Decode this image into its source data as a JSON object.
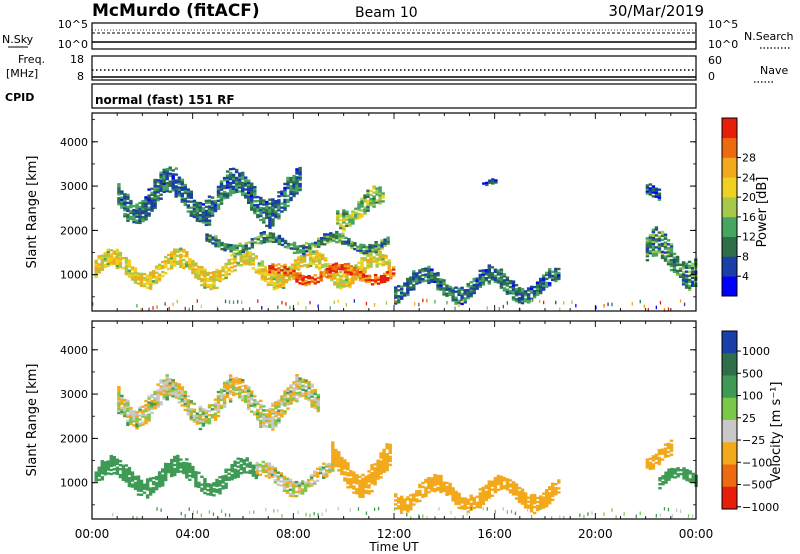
{
  "header": {
    "station": "McMurdo (fitACF)",
    "beam": "Beam 10",
    "date": "30/Mar/2019"
  },
  "status": {
    "nsky_label": "N.Sky",
    "nsky_ticks": [
      "10^5",
      "10^0"
    ],
    "nsearch_label": "N.Search",
    "nsearch_ticks": [
      "10^5",
      "10^0"
    ],
    "freq_label": "Freq.",
    "freq_unit": "[MHz]",
    "freq_ticks": [
      "18",
      "8"
    ],
    "nave_label": "Nave",
    "nave_ticks": [
      "60",
      "0"
    ],
    "cpid_label": "CPID",
    "cpid_value": "normal (fast) 151 RF"
  },
  "chart_data": [
    {
      "type": "heatmap",
      "panel": "power",
      "xlabel": "",
      "ylabel": "Slant Range [km]",
      "x_ticks": [
        "00:00",
        "04:00",
        "08:00",
        "12:00",
        "16:00",
        "20:00",
        "00:00"
      ],
      "y_ticks": [
        "1000",
        "2000",
        "3000",
        "4000"
      ],
      "xlim": [
        0,
        24
      ],
      "ylim": [
        180,
        4650
      ],
      "colorbar": {
        "label": "Power [dB]",
        "ticks": [
          "4",
          "8",
          "12",
          "16",
          "20",
          "24",
          "28"
        ],
        "range": [
          0,
          30
        ],
        "colors": [
          "#0000ff",
          "#1a3fa8",
          "#2e6f4a",
          "#46a560",
          "#a8c84a",
          "#f0d020",
          "#f3a91c",
          "#ee6a10",
          "#e61e0a"
        ]
      },
      "echo_regions": [
        {
          "t0": 0.1,
          "t1": 11.8,
          "r0": 750,
          "r1": 1500,
          "level_db": 18
        },
        {
          "t0": 7.0,
          "t1": 12.0,
          "r0": 800,
          "r1": 1200,
          "level_db": 26
        },
        {
          "t0": 4.5,
          "t1": 11.8,
          "r0": 1500,
          "r1": 1900,
          "level_db": 10
        },
        {
          "t0": 1.0,
          "t1": 8.3,
          "r0": 2200,
          "r1": 3300,
          "level_db": 8
        },
        {
          "t0": 9.7,
          "t1": 11.6,
          "r0": 2100,
          "r1": 2900,
          "level_db": 14
        },
        {
          "t0": 12.0,
          "t1": 18.5,
          "r0": 400,
          "r1": 1100,
          "level_db": 8
        },
        {
          "t0": 15.5,
          "t1": 16.0,
          "r0": 2950,
          "r1": 3150,
          "level_db": 6
        },
        {
          "t0": 22.0,
          "t1": 24.0,
          "r0": 800,
          "r1": 1900,
          "level_db": 10
        },
        {
          "t0": 22.0,
          "t1": 22.6,
          "r0": 2500,
          "r1": 3000,
          "level_db": 6
        }
      ]
    },
    {
      "type": "heatmap",
      "panel": "velocity",
      "xlabel": "Time UT",
      "ylabel": "Slant Range [km]",
      "x_ticks": [
        "00:00",
        "04:00",
        "08:00",
        "12:00",
        "16:00",
        "20:00",
        "00:00"
      ],
      "y_ticks": [
        "1000",
        "2000",
        "3000",
        "4000"
      ],
      "xlim": [
        0,
        24
      ],
      "ylim": [
        180,
        4650
      ],
      "colorbar": {
        "label": "Velocity [m s⁻¹]",
        "ticks": [
          "1000",
          "500",
          "100",
          "25",
          "−25",
          "−100",
          "−500",
          "−1000"
        ],
        "colors": [
          "#1a3fa8",
          "#2e6f4a",
          "#3f9a55",
          "#7cc94a",
          "#c8c8c8",
          "#f3a91c",
          "#ee6a10",
          "#e61e0a"
        ]
      },
      "echo_regions": [
        {
          "t0": 0.1,
          "t1": 6.5,
          "r0": 750,
          "r1": 1500,
          "velocity": 200
        },
        {
          "t0": 6.5,
          "t1": 9.5,
          "r0": 750,
          "r1": 1400,
          "velocity": 0
        },
        {
          "t0": 9.5,
          "t1": 11.8,
          "r0": 750,
          "r1": 1800,
          "velocity": -100
        },
        {
          "t0": 1.0,
          "t1": 9.0,
          "r0": 2300,
          "r1": 3300,
          "velocity": 0
        },
        {
          "t0": 12.0,
          "t1": 18.5,
          "r0": 400,
          "r1": 1100,
          "velocity": -100
        },
        {
          "t0": 22.0,
          "t1": 23.0,
          "r0": 1300,
          "r1": 1900,
          "velocity": -100
        },
        {
          "t0": 22.5,
          "t1": 24.0,
          "r0": 800,
          "r1": 1300,
          "velocity": 200
        }
      ]
    }
  ]
}
